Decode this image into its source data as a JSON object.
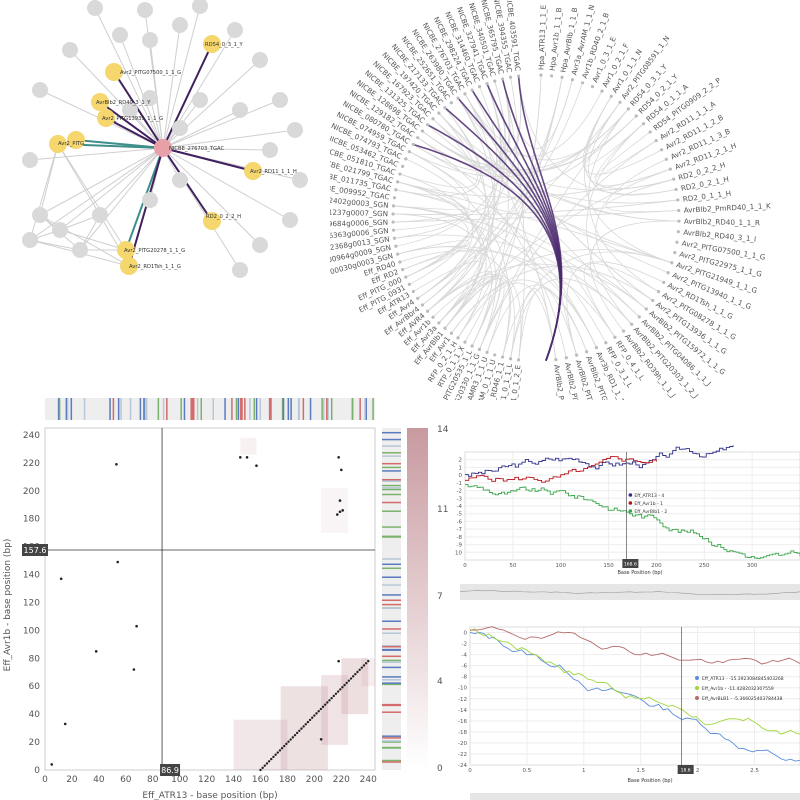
{
  "chart_data": [
    {
      "type": "network",
      "center": "NICBE_276703_TGAC",
      "highlighted": [
        "RD54_0_3_1_Y",
        "Avr2_PITG07500_1_1_G",
        "AvrBlb2_RD40_3_1_Y",
        "Avr2_PITG13939_1_1_G",
        "Avr2_PITG",
        "Avr2_RD11_1_1_H",
        "RD2_0_2_2_H",
        "Avr2_PITG20278_1_1_G",
        "Avr2_RD1Tsh_1_1_G"
      ],
      "colors": {
        "node_highlight": "#f5d76e",
        "node_center": "#e8a0a8",
        "node_other": "#d9d9d9",
        "edge_purple": "#3f1f5e",
        "edge_teal": "#3e8e8a",
        "edge_gray": "#cfcfcf"
      }
    },
    {
      "type": "chord",
      "labels_left": [
        "NICBE_403591_TGAC",
        "NICBE_394355_TGAC",
        "NICBE_365795_TGAC",
        "NICBE_340501_TGAC",
        "NICBE_327941_TGAC",
        "NICBE_314460_TGAC",
        "NICBE_298224_TGAC",
        "NICBE_276703_TGAC",
        "NICBE_263980_TGAC",
        "NICBE_252651_TGAC",
        "NICBE_217133_TGAC",
        "NICBE_197420_TGAC",
        "NICBE_167923_TGAC",
        "NICBE_131325_TGAC",
        "NICBE_128698_TGAC",
        "NICBE_129182_TGAC",
        "NICBE_080780_TGAC",
        "NICBE_074959_TGAC",
        "NICBE_074793_TGAC",
        "NICBE_053462_TGAC",
        "NICBE_051810_TGAC",
        "NICBE_021799_TGAC",
        "NICBE_011735_TGAC",
        "NICBE_009952_TGAC",
        "NbS00052402g0003_SGN",
        "NbS00041237g0007_SGN",
        "NbS00029684g0006_SGN",
        "NbS00016363g0006_SGN",
        "NbS00002368g0013_SGN",
        "NbS00000964g0009_SGN",
        "NbS00000030g0003_SGN",
        "Eff_RD40",
        "Eff_RD2",
        "Eff_PITG_000",
        "Eff_PITG_0931",
        "Eff_ATR13",
        "Eff_Avr4",
        "Eff_AvrBbr4",
        "Eff_AVR4",
        "Eff_Avr1b",
        "Eff_Avr3a",
        "Eff_AvrBlb1",
        "Eff_Avr1",
        "RFP_0_2_1_H",
        "RTP_0_1_1_X",
        "Avr2_PITG20535_1_L",
        "Avr2_PITG20330_1_1_G",
        "AvrAMR3_1_1_U",
        "AvrAM_0_1_1_U",
        "AvrBlb2_RD46_1_1",
        "3RD_C1_0_1_1_L",
        "3RD_C1_0_1_2_E"
      ],
      "labels_right": [
        "Hpa_ATR13_1_1_E",
        "Hpa_Avr1b_1_1_B",
        "Hpa_AvrBlb_1_1_B",
        "Avr3a_AvrAM_1_1_N",
        "Avr1b_RD40_2_1_B",
        "Avr1_0_3_1_E",
        "Avr1_0_2_1_F",
        "Avr1_0_1_1_N",
        "Avr2_PITG08591_1_N",
        "RD54_0_3_1_Y",
        "RD54_0_2_1_Y",
        "RD54_0_1_1_A",
        "RD54_PITG0909_2_2_P",
        "Avr2_RD11_1_1_A",
        "Avr2_RD11_1_2_B",
        "Avr2_RD11_1_3_B",
        "Avr2_RD11_2_1_H",
        "RD2_0_2_2_H",
        "RD2_0_2_1_H",
        "RD2_0_1_1_H",
        "AvrBlb2_PmRD40_1_1_K",
        "AvrBlb2_RD40_1_1_R",
        "AvrBlb2_RD40_3_1_I",
        "Avr2_PITG07500_1_1_G",
        "Avr2_PITG22975_1_1_G",
        "Avr2_PITG21949_1_1_G",
        "Avr2_PITG13940_1_1_G",
        "Avr2_RD1Tsh_1_1_G",
        "Avr2_PITG08278_1_1_G",
        "Avr2_PITG13936_1_1_G",
        "AvrBlb2_PITG15972_1_1_G",
        "AvrBlb2_PITG04086_1_1_J",
        "AvrBlb2_PITG20303_1_2_J",
        "AvrBlb2_RD39h_1_1_J",
        "RFP_0_4_1_L",
        "RFP_0_3_1_L",
        "Avr3b_RD1_1_1_Q",
        "AvrBlb2_PITG04084_1_1_K",
        "AvrBlb2_PITG20304_1_1_K",
        "AvrBlb2_PITG20300_1_1_L",
        "AvrBlb2_PITG20301_1_1_U"
      ],
      "highlight_color": "#4b2a6e"
    },
    {
      "type": "scatter",
      "title": "",
      "xlabel": "Eff_ATR13 - base position (bp)",
      "ylabel": "Eff_Avr1b - base position (bp)",
      "xlim": [
        0,
        245
      ],
      "ylim": [
        0,
        245
      ],
      "xticks": [
        0,
        20,
        40,
        60,
        80,
        100,
        120,
        140,
        160,
        180,
        200,
        220,
        240
      ],
      "yticks": [
        0,
        20,
        40,
        60,
        80,
        100,
        120,
        140,
        160,
        180,
        200,
        220,
        240
      ],
      "crosshair": {
        "x": 86.9,
        "y": 157.6,
        "x_label": "86.9",
        "y_label": "157.6"
      },
      "points": [
        [
          53,
          219
        ],
        [
          145,
          224
        ],
        [
          150,
          224
        ],
        [
          157,
          218
        ],
        [
          218,
          224
        ],
        [
          220,
          215
        ],
        [
          219,
          193
        ],
        [
          217,
          183
        ],
        [
          219,
          185
        ],
        [
          221,
          186
        ],
        [
          12,
          137
        ],
        [
          54,
          149
        ],
        [
          68,
          103
        ],
        [
          38,
          85
        ],
        [
          66,
          72
        ],
        [
          15,
          33
        ],
        [
          5,
          4
        ],
        [
          218,
          78
        ],
        [
          205,
          22
        ]
      ],
      "diagonal": {
        "x": [
          160,
          240
        ],
        "y": [
          0,
          78
        ]
      },
      "colorbar": {
        "ticks": [
          "14",
          "11",
          "7",
          "4",
          "0"
        ],
        "color_max": "#c89aa0"
      }
    },
    {
      "type": "line",
      "xlabel": "Base Position (bp)",
      "ylim": [
        -11,
        3
      ],
      "yticks": [
        2,
        1,
        0,
        -1,
        -2,
        -3,
        -4,
        -5,
        -6,
        -7,
        -8,
        -9,
        -10
      ],
      "xticks": [
        0,
        50,
        100,
        150,
        200,
        250,
        300
      ],
      "crosshair_label": "168.6",
      "series": [
        {
          "name": "Eff_ATR13 - 4",
          "color": "#2d2f8c"
        },
        {
          "name": "Eff_Avr1b - 1",
          "color": "#b5121b"
        },
        {
          "name": "Eff_AvrBlb1 - 2",
          "color": "#3aa64a"
        }
      ]
    },
    {
      "type": "line",
      "xlabel": "Base Position (bp)",
      "ylim": [
        -24,
        1
      ],
      "yticks": [
        0,
        -2,
        -4,
        -6,
        -8,
        -10,
        -12,
        -14,
        -16,
        -18,
        -20,
        -22,
        -24
      ],
      "xticks": [
        0,
        0.5,
        1,
        1.5,
        2,
        2.5
      ],
      "crosshair_label": "18.6",
      "series": [
        {
          "name": "Eff_ATR13 - -15.3923084845403268",
          "color": "#5b8ddb"
        },
        {
          "name": "Eff_Avr1b - -11.4282032307559",
          "color": "#9fd63a"
        },
        {
          "name": "Eff_AvrBLB1 - -5.366025403784438",
          "color": "#b56a6a"
        }
      ]
    }
  ]
}
